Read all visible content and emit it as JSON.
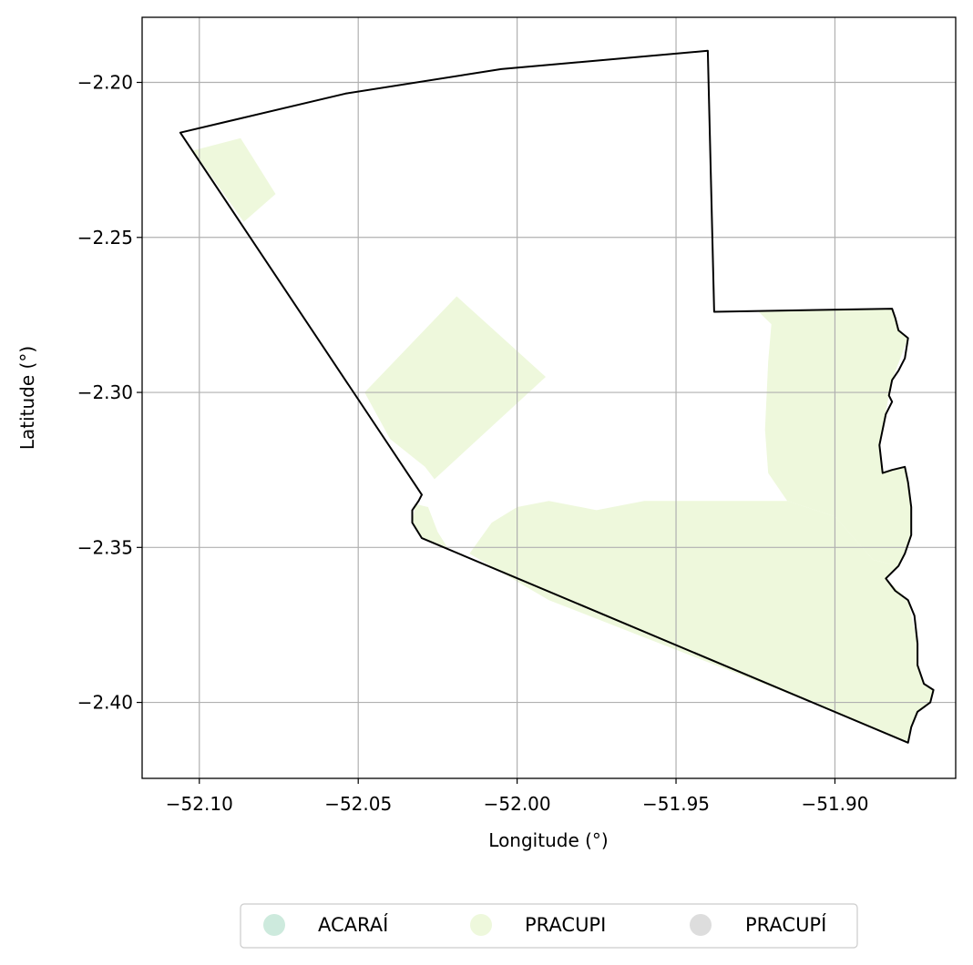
{
  "chart_data": {
    "type": "map",
    "xlabel": "Longitude (°)",
    "ylabel": "Latitude (°)",
    "xlim": [
      -52.118,
      -51.862
    ],
    "ylim": [
      -2.4245,
      -2.179
    ],
    "grid": true,
    "x_ticks": [
      {
        "value": -52.1,
        "label": "−52.10"
      },
      {
        "value": -52.05,
        "label": "−52.05"
      },
      {
        "value": -52.0,
        "label": "−52.00"
      },
      {
        "value": -51.95,
        "label": "−51.95"
      },
      {
        "value": -51.9,
        "label": "−51.90"
      }
    ],
    "y_ticks": [
      {
        "value": -2.2,
        "label": "−2.20"
      },
      {
        "value": -2.25,
        "label": "−2.25"
      },
      {
        "value": -2.3,
        "label": "−2.30"
      },
      {
        "value": -2.35,
        "label": "−2.35"
      },
      {
        "value": -2.4,
        "label": "−2.40"
      }
    ],
    "legend": {
      "placement": "bottom-center",
      "entries": [
        {
          "label": "ACARAÍ",
          "color": "#cdeadd"
        },
        {
          "label": "PRACUPI",
          "color": "#eef8dc"
        },
        {
          "label": "PRACUPÍ",
          "color": "#dddddd"
        }
      ]
    },
    "boundary": [
      [
        -52.106,
        -2.2162
      ],
      [
        -52.054,
        -2.2036
      ],
      [
        -52.005,
        -2.1957
      ],
      [
        -51.94,
        -2.1898
      ],
      [
        -51.938,
        -2.274
      ],
      [
        -51.882,
        -2.273
      ],
      [
        -51.881,
        -2.276
      ],
      [
        -51.88,
        -2.28
      ],
      [
        -51.877,
        -2.2825
      ],
      [
        -51.878,
        -2.289
      ],
      [
        -51.88,
        -2.293
      ],
      [
        -51.882,
        -2.296
      ],
      [
        -51.883,
        -2.301
      ],
      [
        -51.882,
        -2.303
      ],
      [
        -51.884,
        -2.307
      ],
      [
        -51.886,
        -2.317
      ],
      [
        -51.885,
        -2.326
      ],
      [
        -51.882,
        -2.325
      ],
      [
        -51.878,
        -2.324
      ],
      [
        -51.877,
        -2.329
      ],
      [
        -51.876,
        -2.337
      ],
      [
        -51.876,
        -2.346
      ],
      [
        -51.878,
        -2.352
      ],
      [
        -51.88,
        -2.356
      ],
      [
        -51.884,
        -2.36
      ],
      [
        -51.881,
        -2.364
      ],
      [
        -51.877,
        -2.367
      ],
      [
        -51.875,
        -2.372
      ],
      [
        -51.874,
        -2.381
      ],
      [
        -51.874,
        -2.388
      ],
      [
        -51.872,
        -2.394
      ],
      [
        -51.869,
        -2.396
      ],
      [
        -51.87,
        -2.4
      ],
      [
        -51.874,
        -2.403
      ],
      [
        -51.876,
        -2.408
      ],
      [
        -51.877,
        -2.413
      ],
      [
        -52.03,
        -2.347
      ],
      [
        -52.033,
        -2.342
      ],
      [
        -52.033,
        -2.338
      ],
      [
        -52.031,
        -2.335
      ],
      [
        -52.03,
        -2.333
      ],
      [
        -52.106,
        -2.2162
      ]
    ],
    "regions": [
      {
        "name": "PRACUPI",
        "color": "#eef8dc",
        "polygons": [
          [
            [
              -52.102,
              -2.222
            ],
            [
              -52.087,
              -2.218
            ],
            [
              -52.076,
              -2.236
            ],
            [
              -52.086,
              -2.245
            ],
            [
              -52.102,
              -2.222
            ]
          ],
          [
            [
              -52.019,
              -2.269
            ],
            [
              -51.991,
              -2.295
            ],
            [
              -52.026,
              -2.328
            ],
            [
              -52.029,
              -2.324
            ],
            [
              -52.04,
              -2.315
            ],
            [
              -52.048,
              -2.3
            ],
            [
              -52.019,
              -2.269
            ]
          ],
          [
            [
              -51.924,
              -2.274
            ],
            [
              -51.882,
              -2.273
            ],
            [
              -51.88,
              -2.28
            ],
            [
              -51.877,
              -2.2825
            ],
            [
              -51.882,
              -2.296
            ],
            [
              -51.883,
              -2.301
            ],
            [
              -51.886,
              -2.317
            ],
            [
              -51.885,
              -2.326
            ],
            [
              -51.878,
              -2.324
            ],
            [
              -51.876,
              -2.337
            ],
            [
              -51.876,
              -2.346
            ],
            [
              -51.88,
              -2.356
            ],
            [
              -51.888,
              -2.354
            ],
            [
              -51.9,
              -2.34
            ],
            [
              -51.915,
              -2.335
            ],
            [
              -51.921,
              -2.326
            ],
            [
              -51.922,
              -2.312
            ],
            [
              -51.921,
              -2.29
            ],
            [
              -51.92,
              -2.278
            ],
            [
              -51.924,
              -2.274
            ]
          ],
          [
            [
              -52.032,
              -2.336
            ],
            [
              -52.028,
              -2.337
            ],
            [
              -52.025,
              -2.345
            ],
            [
              -52.022,
              -2.35
            ],
            [
              -52.03,
              -2.347
            ],
            [
              -52.033,
              -2.342
            ],
            [
              -52.032,
              -2.336
            ]
          ],
          [
            [
              -52.015,
              -2.352
            ],
            [
              -52.008,
              -2.342
            ],
            [
              -52.0,
              -2.337
            ],
            [
              -51.99,
              -2.335
            ],
            [
              -51.975,
              -2.338
            ],
            [
              -51.96,
              -2.335
            ],
            [
              -51.945,
              -2.335
            ],
            [
              -51.915,
              -2.335
            ],
            [
              -51.9,
              -2.34
            ],
            [
              -51.888,
              -2.354
            ],
            [
              -51.88,
              -2.356
            ],
            [
              -51.884,
              -2.36
            ],
            [
              -51.877,
              -2.367
            ],
            [
              -51.874,
              -2.381
            ],
            [
              -51.874,
              -2.388
            ],
            [
              -51.872,
              -2.394
            ],
            [
              -51.869,
              -2.396
            ],
            [
              -51.87,
              -2.4
            ],
            [
              -51.874,
              -2.403
            ],
            [
              -51.876,
              -2.408
            ],
            [
              -51.877,
              -2.413
            ],
            [
              -51.9,
              -2.403
            ],
            [
              -51.915,
              -2.397
            ],
            [
              -51.93,
              -2.391
            ],
            [
              -51.96,
              -2.379
            ],
            [
              -51.99,
              -2.367
            ],
            [
              -52.015,
              -2.352
            ]
          ]
        ]
      }
    ]
  }
}
